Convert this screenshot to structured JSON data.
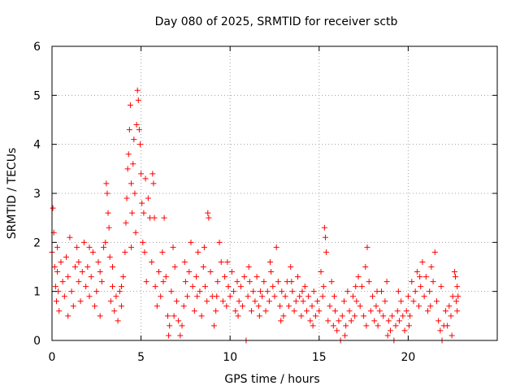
{
  "chart_data": {
    "type": "scatter",
    "title": "Day 080 of 2025, SRMTID for receiver sctb",
    "xlabel": "GPS time / hours",
    "ylabel": "SRMTID / TECUs",
    "xlim": [
      0,
      25
    ],
    "ylim": [
      0,
      6
    ],
    "xticks": [
      0,
      5,
      10,
      15,
      20
    ],
    "yticks": [
      0,
      1,
      2,
      3,
      4,
      5,
      6
    ],
    "grid": true,
    "marker": "+",
    "color": "#ff0000",
    "series": [
      {
        "name": "SRMTID",
        "points": [
          [
            0.0,
            1.8
          ],
          [
            0.05,
            2.7
          ],
          [
            0.1,
            2.2
          ],
          [
            0.15,
            1.5
          ],
          [
            0.2,
            1.1
          ],
          [
            0.25,
            0.8
          ],
          [
            0.3,
            1.4
          ],
          [
            0.35,
            1.0
          ],
          [
            0.4,
            0.6
          ],
          [
            0.5,
            1.6
          ],
          [
            0.6,
            1.2
          ],
          [
            0.7,
            0.9
          ],
          [
            0.8,
            1.7
          ],
          [
            0.9,
            1.3
          ],
          [
            1.0,
            2.1
          ],
          [
            1.1,
            1.0
          ],
          [
            1.2,
            0.7
          ],
          [
            1.3,
            1.5
          ],
          [
            1.4,
            1.9
          ],
          [
            1.5,
            1.2
          ],
          [
            1.6,
            0.8
          ],
          [
            1.7,
            1.4
          ],
          [
            1.8,
            2.0
          ],
          [
            1.9,
            1.1
          ],
          [
            2.0,
            1.5
          ],
          [
            2.1,
            0.9
          ],
          [
            2.2,
            1.3
          ],
          [
            2.3,
            1.8
          ],
          [
            2.4,
            0.7
          ],
          [
            2.5,
            1.0
          ],
          [
            2.6,
            1.6
          ],
          [
            2.7,
            0.5
          ],
          [
            2.8,
            1.2
          ],
          [
            2.9,
            1.9
          ],
          [
            3.0,
            2.0
          ],
          [
            3.05,
            3.2
          ],
          [
            3.1,
            3.0
          ],
          [
            3.15,
            2.6
          ],
          [
            3.2,
            2.3
          ],
          [
            3.25,
            1.7
          ],
          [
            3.3,
            0.8
          ],
          [
            3.4,
            1.1
          ],
          [
            3.5,
            0.6
          ],
          [
            3.6,
            0.9
          ],
          [
            3.7,
            0.4
          ],
          [
            3.8,
            1.0
          ],
          [
            3.9,
            0.7
          ],
          [
            4.0,
            1.3
          ],
          [
            4.1,
            1.8
          ],
          [
            4.15,
            2.4
          ],
          [
            4.2,
            2.9
          ],
          [
            4.25,
            3.5
          ],
          [
            4.3,
            3.8
          ],
          [
            4.35,
            4.3
          ],
          [
            4.4,
            4.8
          ],
          [
            4.45,
            3.2
          ],
          [
            4.5,
            2.6
          ],
          [
            4.55,
            3.6
          ],
          [
            4.6,
            4.1
          ],
          [
            4.65,
            3.0
          ],
          [
            4.7,
            2.2
          ],
          [
            4.75,
            4.4
          ],
          [
            4.8,
            5.1
          ],
          [
            4.85,
            4.9
          ],
          [
            4.9,
            4.3
          ],
          [
            4.95,
            4.0
          ],
          [
            5.0,
            3.4
          ],
          [
            5.05,
            2.8
          ],
          [
            5.1,
            2.0
          ],
          [
            5.15,
            2.6
          ],
          [
            5.2,
            1.8
          ],
          [
            5.3,
            1.2
          ],
          [
            5.4,
            2.9
          ],
          [
            5.5,
            2.5
          ],
          [
            5.6,
            1.6
          ],
          [
            5.65,
            3.4
          ],
          [
            5.7,
            3.2
          ],
          [
            5.8,
            1.1
          ],
          [
            5.9,
            0.7
          ],
          [
            6.0,
            1.4
          ],
          [
            6.1,
            0.9
          ],
          [
            6.2,
            1.8
          ],
          [
            6.3,
            2.5
          ],
          [
            6.4,
            1.3
          ],
          [
            6.5,
            0.5
          ],
          [
            6.55,
            0.1
          ],
          [
            6.6,
            0.3
          ],
          [
            6.7,
            1.0
          ],
          [
            6.8,
            1.9
          ],
          [
            6.9,
            1.5
          ],
          [
            7.0,
            0.8
          ],
          [
            7.1,
            0.4
          ],
          [
            7.2,
            0.1
          ],
          [
            7.3,
            0.3
          ],
          [
            7.4,
            0.7
          ],
          [
            7.5,
            1.2
          ],
          [
            7.6,
            0.9
          ],
          [
            7.7,
            1.4
          ],
          [
            7.8,
            2.0
          ],
          [
            7.9,
            1.1
          ],
          [
            8.0,
            0.6
          ],
          [
            8.1,
            1.3
          ],
          [
            8.2,
            1.8
          ],
          [
            8.3,
            1.0
          ],
          [
            8.4,
            0.5
          ],
          [
            8.5,
            1.5
          ],
          [
            8.6,
            1.1
          ],
          [
            8.7,
            0.8
          ],
          [
            8.75,
            2.6
          ],
          [
            8.8,
            2.5
          ],
          [
            8.9,
            1.4
          ],
          [
            9.0,
            0.9
          ],
          [
            9.1,
            0.3
          ],
          [
            9.2,
            0.6
          ],
          [
            9.3,
            1.2
          ],
          [
            9.4,
            2.0
          ],
          [
            9.5,
            1.6
          ],
          [
            9.6,
            0.8
          ],
          [
            9.7,
            1.3
          ],
          [
            9.8,
            0.7
          ],
          [
            9.9,
            1.1
          ],
          [
            10.0,
            0.9
          ],
          [
            10.1,
            1.4
          ],
          [
            10.2,
            1.0
          ],
          [
            10.3,
            0.6
          ],
          [
            10.4,
            1.2
          ],
          [
            10.5,
            0.8
          ],
          [
            10.6,
            1.1
          ],
          [
            10.7,
            0.7
          ],
          [
            10.8,
            1.3
          ],
          [
            10.9,
            0.0
          ],
          [
            11.0,
            0.9
          ],
          [
            11.1,
            1.2
          ],
          [
            11.2,
            0.6
          ],
          [
            11.3,
            1.0
          ],
          [
            11.4,
            0.8
          ],
          [
            11.5,
            1.3
          ],
          [
            11.6,
            0.7
          ],
          [
            11.7,
            1.0
          ],
          [
            11.8,
            0.9
          ],
          [
            11.9,
            1.2
          ],
          [
            12.0,
            0.6
          ],
          [
            12.1,
            1.0
          ],
          [
            12.2,
            0.8
          ],
          [
            12.3,
            1.4
          ],
          [
            12.4,
            1.1
          ],
          [
            12.5,
            0.9
          ],
          [
            12.6,
            1.9
          ],
          [
            12.7,
            1.2
          ],
          [
            12.8,
            0.7
          ],
          [
            12.9,
            1.0
          ],
          [
            13.0,
            0.5
          ],
          [
            13.1,
            0.9
          ],
          [
            13.2,
            1.2
          ],
          [
            13.3,
            0.7
          ],
          [
            13.4,
            1.5
          ],
          [
            13.5,
            1.0
          ],
          [
            13.6,
            0.6
          ],
          [
            13.7,
            0.8
          ],
          [
            13.8,
            1.3
          ],
          [
            13.9,
            0.9
          ],
          [
            14.0,
            0.5
          ],
          [
            14.1,
            0.8
          ],
          [
            14.2,
            1.1
          ],
          [
            14.3,
            0.6
          ],
          [
            14.4,
            0.9
          ],
          [
            14.5,
            0.4
          ],
          [
            14.6,
            0.7
          ],
          [
            14.7,
            1.0
          ],
          [
            14.8,
            0.5
          ],
          [
            14.9,
            0.8
          ],
          [
            15.0,
            0.6
          ],
          [
            15.1,
            1.4
          ],
          [
            15.2,
            0.9
          ],
          [
            15.3,
            2.3
          ],
          [
            15.35,
            2.1
          ],
          [
            15.4,
            1.8
          ],
          [
            15.5,
            0.4
          ],
          [
            15.6,
            0.7
          ],
          [
            15.7,
            1.2
          ],
          [
            15.8,
            0.3
          ],
          [
            15.9,
            0.6
          ],
          [
            16.0,
            0.2
          ],
          [
            16.1,
            0.4
          ],
          [
            16.2,
            0.0
          ],
          [
            16.3,
            0.5
          ],
          [
            16.4,
            0.8
          ],
          [
            16.5,
            0.3
          ],
          [
            16.6,
            1.0
          ],
          [
            16.7,
            0.6
          ],
          [
            16.8,
            0.4
          ],
          [
            16.9,
            0.9
          ],
          [
            17.0,
            0.5
          ],
          [
            17.1,
            0.8
          ],
          [
            17.2,
            1.3
          ],
          [
            17.3,
            0.7
          ],
          [
            17.4,
            1.1
          ],
          [
            17.5,
            0.5
          ],
          [
            17.6,
            1.5
          ],
          [
            17.7,
            1.9
          ],
          [
            17.8,
            1.2
          ],
          [
            17.9,
            0.6
          ],
          [
            18.0,
            0.9
          ],
          [
            18.1,
            0.4
          ],
          [
            18.2,
            0.7
          ],
          [
            18.3,
            0.3
          ],
          [
            18.4,
            0.6
          ],
          [
            18.5,
            1.0
          ],
          [
            18.6,
            0.5
          ],
          [
            18.7,
            0.8
          ],
          [
            18.8,
            1.2
          ],
          [
            18.9,
            0.4
          ],
          [
            19.0,
            0.2
          ],
          [
            19.1,
            0.5
          ],
          [
            19.2,
            0.0
          ],
          [
            19.3,
            0.3
          ],
          [
            19.4,
            0.6
          ],
          [
            19.5,
            0.4
          ],
          [
            19.6,
            0.8
          ],
          [
            19.7,
            0.5
          ],
          [
            19.8,
            0.2
          ],
          [
            19.9,
            0.6
          ],
          [
            20.0,
            0.9
          ],
          [
            20.1,
            0.5
          ],
          [
            20.2,
            1.2
          ],
          [
            20.3,
            0.8
          ],
          [
            20.4,
            1.0
          ],
          [
            20.5,
            1.4
          ],
          [
            20.6,
            0.7
          ],
          [
            20.7,
            1.1
          ],
          [
            20.8,
            1.6
          ],
          [
            20.9,
            0.9
          ],
          [
            21.0,
            1.3
          ],
          [
            21.1,
            0.6
          ],
          [
            21.2,
            1.0
          ],
          [
            21.3,
            1.5
          ],
          [
            21.4,
            1.2
          ],
          [
            21.5,
            1.8
          ],
          [
            21.6,
            0.8
          ],
          [
            21.7,
            0.4
          ],
          [
            21.8,
            0.2
          ],
          [
            21.9,
            0.0
          ],
          [
            22.0,
            0.3
          ],
          [
            22.1,
            0.6
          ],
          [
            22.2,
            0.3
          ],
          [
            22.3,
            0.7
          ],
          [
            22.4,
            0.5
          ],
          [
            22.5,
            0.9
          ],
          [
            22.6,
            1.4
          ],
          [
            22.65,
            1.3
          ],
          [
            22.7,
            0.8
          ],
          [
            22.75,
            0.6
          ],
          [
            22.8,
            0.9
          ],
          [
            0.3,
            1.9
          ],
          [
            0.9,
            0.5
          ],
          [
            1.5,
            1.6
          ],
          [
            2.1,
            1.9
          ],
          [
            2.7,
            1.4
          ],
          [
            3.4,
            1.5
          ],
          [
            3.9,
            1.1
          ],
          [
            4.45,
            1.9
          ],
          [
            5.25,
            3.3
          ],
          [
            5.75,
            2.5
          ],
          [
            6.25,
            1.2
          ],
          [
            6.85,
            0.5
          ],
          [
            7.45,
            1.6
          ],
          [
            8.15,
            0.9
          ],
          [
            8.55,
            1.9
          ],
          [
            9.25,
            0.9
          ],
          [
            9.85,
            1.6
          ],
          [
            10.45,
            0.5
          ],
          [
            11.05,
            1.5
          ],
          [
            11.65,
            0.5
          ],
          [
            12.25,
            1.6
          ],
          [
            12.85,
            0.4
          ],
          [
            13.45,
            1.2
          ],
          [
            14.05,
            1.0
          ],
          [
            14.65,
            0.3
          ],
          [
            15.25,
            1.1
          ],
          [
            15.85,
            0.9
          ],
          [
            16.45,
            0.1
          ],
          [
            17.05,
            1.1
          ],
          [
            17.65,
            0.3
          ],
          [
            18.25,
            1.0
          ],
          [
            18.85,
            0.1
          ],
          [
            19.45,
            1.0
          ],
          [
            20.05,
            0.3
          ],
          [
            20.65,
            1.3
          ],
          [
            21.25,
            0.7
          ],
          [
            21.85,
            1.1
          ],
          [
            22.45,
            0.1
          ],
          [
            22.75,
            1.1
          ]
        ]
      }
    ]
  }
}
